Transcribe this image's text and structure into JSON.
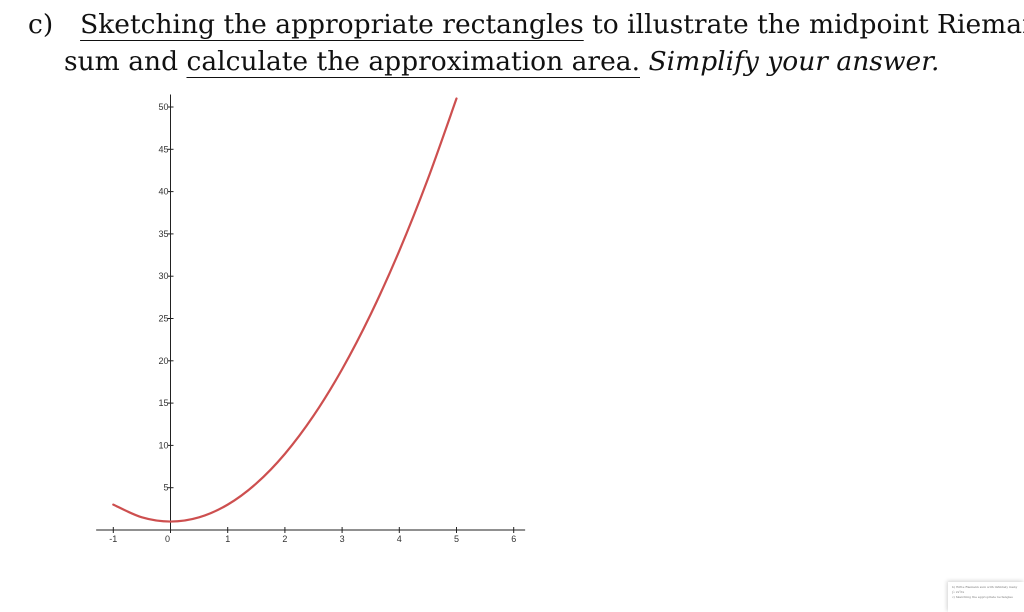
{
  "question": {
    "label": "c)",
    "seg1": "Sketching the appropriate rectangles",
    "seg2": " to illustrate the midpoint Riemann",
    "seg3": "sum and ",
    "seg4": "calculate the approximation area.",
    "seg5": " ",
    "seg6": "Simplify your answer."
  },
  "chart_data": {
    "type": "line",
    "title": "",
    "xlabel": "",
    "ylabel": "",
    "xlim": [
      -1.3,
      6.2
    ],
    "ylim": [
      0,
      51
    ],
    "x_ticks": [
      -1,
      0,
      1,
      2,
      3,
      4,
      5,
      6
    ],
    "y_ticks": [
      5,
      10,
      15,
      20,
      25,
      30,
      35,
      40,
      45,
      50
    ],
    "grid": false,
    "series": [
      {
        "color": "#cd4f4f",
        "x": [
          -1,
          -0.5,
          0,
          0.5,
          1,
          1.5,
          2,
          2.5,
          3,
          3.5,
          4,
          4.5,
          5
        ],
        "y": [
          3,
          1.5,
          1,
          1.5,
          3,
          5.5,
          9,
          13.5,
          19,
          25.5,
          33,
          41.5,
          51
        ]
      }
    ]
  },
  "thumbnail": {
    "line1": "b) Write Riemann sum with infinitely many",
    "line2": "∫₀ 2x²dx",
    "line3": "c) Sketching the appropriate rectangles"
  }
}
